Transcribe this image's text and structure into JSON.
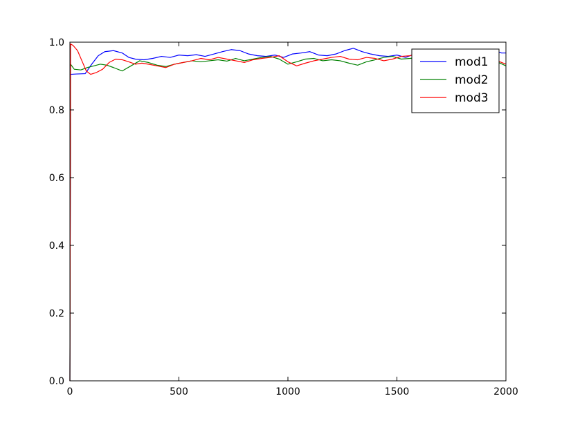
{
  "chart_data": {
    "type": "line",
    "title": "",
    "xlabel": "",
    "ylabel": "",
    "xlim": [
      0,
      2000
    ],
    "ylim": [
      0.0,
      1.0
    ],
    "x_ticks": [
      0,
      500,
      1000,
      1500,
      2000
    ],
    "x_tick_labels": [
      "0",
      "500",
      "1000",
      "1500",
      "2000"
    ],
    "y_ticks": [
      0.0,
      0.2,
      0.4,
      0.6,
      0.8,
      1.0
    ],
    "y_tick_labels": [
      "0.0",
      "0.2",
      "0.4",
      "0.6",
      "0.8",
      "1.0"
    ],
    "grid": false,
    "legend_position": "top-right",
    "series": [
      {
        "name": "mod1",
        "color": "#0000ff",
        "x": [
          0,
          3,
          30,
          70,
          100,
          130,
          160,
          200,
          240,
          270,
          300,
          340,
          380,
          420,
          460,
          500,
          540,
          580,
          620,
          660,
          700,
          740,
          780,
          820,
          860,
          900,
          940,
          980,
          1020,
          1060,
          1100,
          1140,
          1180,
          1220,
          1260,
          1300,
          1340,
          1380,
          1420,
          1460,
          1500,
          1540,
          1580,
          1620,
          1660,
          1700,
          1740,
          1780,
          1820,
          1860,
          1900,
          1940,
          1980,
          2000
        ],
        "y": [
          0.0,
          0.905,
          0.906,
          0.907,
          0.935,
          0.96,
          0.972,
          0.975,
          0.968,
          0.955,
          0.95,
          0.948,
          0.952,
          0.958,
          0.955,
          0.962,
          0.96,
          0.963,
          0.958,
          0.965,
          0.972,
          0.978,
          0.975,
          0.965,
          0.96,
          0.958,
          0.962,
          0.955,
          0.965,
          0.968,
          0.972,
          0.962,
          0.96,
          0.965,
          0.975,
          0.982,
          0.972,
          0.965,
          0.96,
          0.958,
          0.962,
          0.955,
          0.965,
          0.972,
          0.978,
          0.97,
          0.968,
          0.975,
          0.972,
          0.968,
          0.975,
          0.978,
          0.968,
          0.968
        ]
      },
      {
        "name": "mod2",
        "color": "#008000",
        "x": [
          0,
          3,
          20,
          50,
          80,
          110,
          140,
          170,
          200,
          240,
          280,
          320,
          360,
          400,
          440,
          480,
          520,
          560,
          600,
          640,
          680,
          720,
          760,
          800,
          840,
          880,
          920,
          960,
          1000,
          1040,
          1080,
          1120,
          1160,
          1200,
          1240,
          1280,
          1320,
          1360,
          1400,
          1440,
          1480,
          1520,
          1560,
          1600,
          1640,
          1680,
          1720,
          1760,
          1800,
          1840,
          1880,
          1920,
          1960,
          2000
        ],
        "y": [
          0.0,
          0.935,
          0.92,
          0.918,
          0.925,
          0.93,
          0.935,
          0.932,
          0.925,
          0.915,
          0.93,
          0.945,
          0.94,
          0.932,
          0.928,
          0.935,
          0.94,
          0.945,
          0.942,
          0.945,
          0.948,
          0.944,
          0.952,
          0.945,
          0.95,
          0.955,
          0.958,
          0.95,
          0.935,
          0.942,
          0.95,
          0.952,
          0.945,
          0.948,
          0.945,
          0.938,
          0.932,
          0.942,
          0.948,
          0.955,
          0.958,
          0.95,
          0.952,
          0.955,
          0.95,
          0.945,
          0.958,
          0.962,
          0.96,
          0.945,
          0.938,
          0.95,
          0.942,
          0.93
        ]
      },
      {
        "name": "mod3",
        "color": "#ff0000",
        "x": [
          0,
          3,
          15,
          35,
          55,
          75,
          95,
          120,
          150,
          180,
          210,
          240,
          270,
          300,
          330,
          360,
          400,
          440,
          480,
          520,
          560,
          600,
          640,
          680,
          720,
          760,
          800,
          840,
          880,
          920,
          960,
          1000,
          1040,
          1080,
          1120,
          1160,
          1200,
          1240,
          1280,
          1320,
          1360,
          1400,
          1440,
          1480,
          1520,
          1560,
          1600,
          1640,
          1680,
          1720,
          1760,
          1800,
          1840,
          1880,
          1920,
          1960,
          2000
        ],
        "y": [
          0.0,
          0.995,
          0.99,
          0.975,
          0.945,
          0.915,
          0.905,
          0.91,
          0.92,
          0.94,
          0.95,
          0.948,
          0.942,
          0.935,
          0.938,
          0.935,
          0.93,
          0.925,
          0.935,
          0.94,
          0.945,
          0.952,
          0.948,
          0.955,
          0.95,
          0.945,
          0.94,
          0.948,
          0.952,
          0.955,
          0.96,
          0.942,
          0.93,
          0.938,
          0.945,
          0.95,
          0.955,
          0.958,
          0.95,
          0.948,
          0.955,
          0.952,
          0.945,
          0.95,
          0.958,
          0.96,
          0.968,
          0.965,
          0.962,
          0.955,
          0.952,
          0.965,
          0.97,
          0.962,
          0.955,
          0.945,
          0.935
        ]
      }
    ]
  }
}
